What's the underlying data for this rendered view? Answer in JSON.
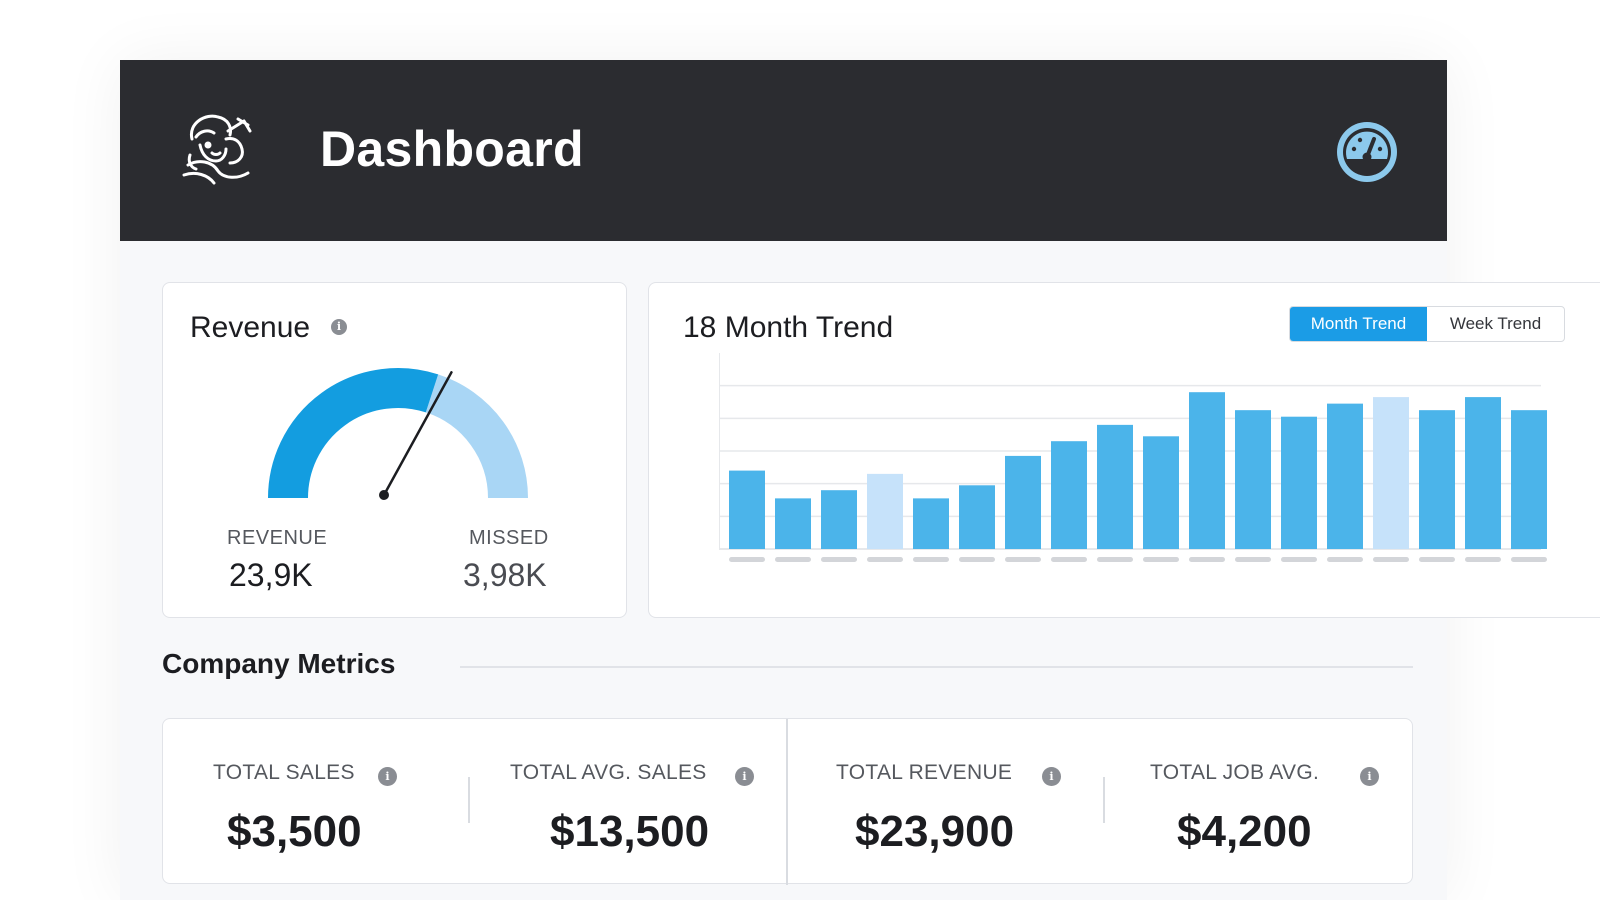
{
  "header": {
    "title": "Dashboard",
    "logo_icon": "mascot-logo-icon",
    "speed_icon": "speedometer-icon"
  },
  "revenue_card": {
    "title": "Revenue",
    "gauge": {
      "revenue_fraction": 0.6,
      "needle_fraction": 0.66,
      "colors": {
        "revenue": "#139de0",
        "missed": "#a9d6f5"
      }
    },
    "revenue_label": "REVENUE",
    "revenue_value": "23,9K",
    "missed_label": "MISSED",
    "missed_value": "3,98K"
  },
  "trend_card": {
    "title": "18 Month Trend",
    "toggle": {
      "month_label": "Month Trend",
      "week_label": "Week Trend",
      "active": "month"
    }
  },
  "chart_data": {
    "type": "bar",
    "ylim": [
      0,
      6
    ],
    "grid": true,
    "values": [
      2.4,
      1.55,
      1.8,
      2.3,
      1.55,
      1.95,
      2.85,
      3.3,
      3.8,
      3.45,
      4.8,
      4.25,
      4.05,
      4.45,
      4.65,
      4.25,
      4.65,
      4.25
    ],
    "highlight": [
      false,
      false,
      false,
      true,
      false,
      false,
      false,
      false,
      false,
      false,
      false,
      false,
      false,
      false,
      true,
      false,
      false,
      false
    ],
    "colors": {
      "bar": "#4bb4ea",
      "bar_highlight": "#c6e2fa",
      "axis_placeholder": "#d3d5d9",
      "grid": "#e6e8eb"
    }
  },
  "metrics": {
    "section_title": "Company Metrics",
    "items": [
      {
        "label": "TOTAL SALES",
        "value": "$3,500"
      },
      {
        "label": "TOTAL AVG. SALES",
        "value": "$13,500"
      },
      {
        "label": "TOTAL REVENUE",
        "value": "$23,900"
      },
      {
        "label": "TOTAL JOB AVG.",
        "value": "$4,200"
      }
    ]
  }
}
